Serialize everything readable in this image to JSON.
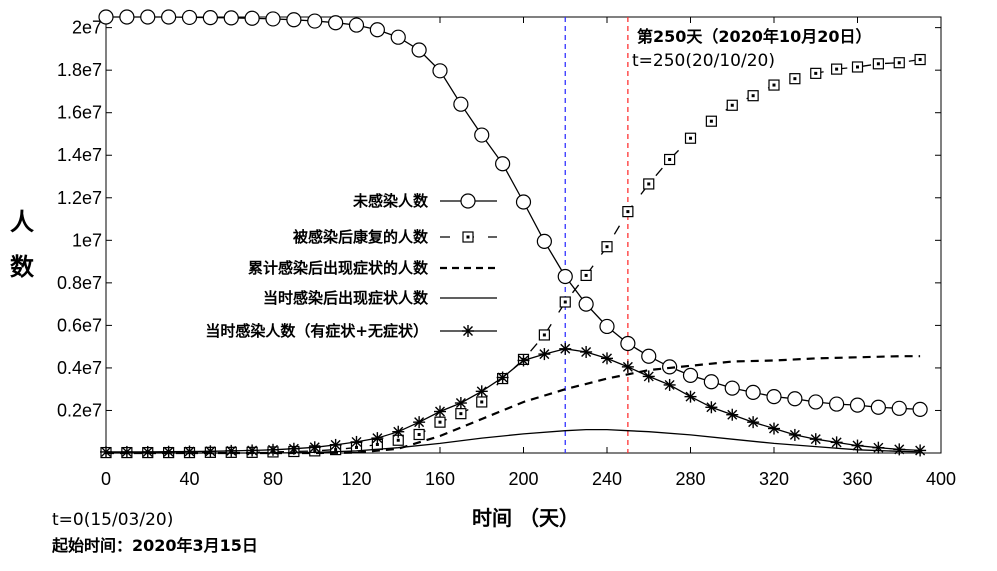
{
  "chart_data": {
    "type": "line",
    "title": "",
    "xlabel": "时间 （天）",
    "ylabel_chars": [
      "人",
      "数"
    ],
    "xlim": [
      0,
      400
    ],
    "ylim": [
      0,
      20500000
    ],
    "x_ticks": [
      0,
      40,
      80,
      120,
      160,
      200,
      240,
      280,
      320,
      360,
      400
    ],
    "x_tick_labels": [
      "0",
      "40",
      "80",
      "120",
      "160",
      "200",
      "240",
      "280",
      "320",
      "360",
      "400"
    ],
    "y_ticks": [
      2000000,
      4000000,
      6000000,
      8000000,
      10000000,
      12000000,
      14000000,
      16000000,
      18000000,
      20000000
    ],
    "y_tick_labels": [
      "0.2e7",
      "0.4e7",
      "0.6e7",
      "0.8e7",
      "1e7",
      "1.2e7",
      "1.4e7",
      "1.6e7",
      "1.8e7",
      "2e7"
    ],
    "vlines": [
      {
        "x": 220,
        "color": "#3333ff",
        "name": "peak-infection-line"
      },
      {
        "x": 250,
        "color": "#ff3333",
        "name": "day-250-line"
      }
    ],
    "annotations": {
      "day250_bold": "第250天（2020年10月20日）",
      "day250_plain": "t=250(20/10/20)",
      "start_t": "t=0(15/03/20)",
      "start_date": "起始时间：2020年3月15日"
    },
    "series": [
      {
        "name": "未感染人数",
        "style": "solid-circle",
        "x": [
          0,
          10,
          20,
          30,
          40,
          50,
          60,
          70,
          80,
          90,
          100,
          110,
          120,
          130,
          140,
          150,
          160,
          170,
          180,
          190,
          200,
          210,
          220,
          230,
          240,
          250,
          260,
          270,
          280,
          290,
          300,
          310,
          320,
          330,
          340,
          350,
          360,
          370,
          380,
          390
        ],
        "values": [
          20500000,
          20500000,
          20500000,
          20500000,
          20480000,
          20470000,
          20460000,
          20440000,
          20410000,
          20370000,
          20310000,
          20230000,
          20120000,
          19900000,
          19550000,
          18950000,
          17970000,
          16400000,
          14950000,
          13600000,
          11800000,
          9950000,
          8300000,
          7000000,
          5950000,
          5150000,
          4550000,
          4050000,
          3650000,
          3350000,
          3050000,
          2850000,
          2650000,
          2550000,
          2400000,
          2300000,
          2250000,
          2150000,
          2100000,
          2050000
        ]
      },
      {
        "name": "被感染后康复的人数",
        "style": "dashed-square",
        "x": [
          0,
          10,
          20,
          30,
          40,
          50,
          60,
          70,
          80,
          90,
          100,
          110,
          120,
          130,
          140,
          150,
          160,
          170,
          180,
          190,
          200,
          210,
          220,
          230,
          240,
          250,
          260,
          270,
          280,
          290,
          300,
          310,
          320,
          330,
          340,
          350,
          360,
          370,
          380,
          390
        ],
        "values": [
          20000,
          20000,
          20000,
          20000,
          20000,
          30000,
          30000,
          30000,
          50000,
          70000,
          100000,
          160000,
          260000,
          400000,
          600000,
          870000,
          1450000,
          1850000,
          2400000,
          3500000,
          4400000,
          5550000,
          7100000,
          8350000,
          9700000,
          11350000,
          12650000,
          13800000,
          14800000,
          15600000,
          16350000,
          16800000,
          17300000,
          17600000,
          17850000,
          18050000,
          18150000,
          18300000,
          18350000,
          18500000
        ]
      },
      {
        "name": "累计感染后出现症状的人数",
        "style": "dashed",
        "x": [
          0,
          20,
          40,
          60,
          80,
          100,
          120,
          140,
          160,
          180,
          200,
          220,
          240,
          260,
          280,
          300,
          320,
          340,
          360,
          380,
          390
        ],
        "values": [
          0,
          0,
          0,
          0,
          0,
          0,
          20000,
          200000,
          800000,
          1600000,
          2400000,
          3000000,
          3500000,
          3900000,
          4100000,
          4300000,
          4350000,
          4450000,
          4500000,
          4550000,
          4550000
        ]
      },
      {
        "name": "当时感染后出现症状人数",
        "style": "solid",
        "x": [
          0,
          20,
          40,
          60,
          80,
          100,
          120,
          140,
          160,
          180,
          200,
          220,
          230,
          240,
          250,
          260,
          280,
          300,
          320,
          340,
          360,
          380,
          390
        ],
        "values": [
          0,
          0,
          0,
          0,
          0,
          30000,
          100000,
          250000,
          450000,
          700000,
          900000,
          1050000,
          1100000,
          1100000,
          1050000,
          1000000,
          850000,
          650000,
          450000,
          300000,
          150000,
          80000,
          50000
        ]
      },
      {
        "name": "当时感染人数（有症状+无症状）",
        "style": "solid-star",
        "x": [
          0,
          10,
          20,
          30,
          40,
          50,
          60,
          70,
          80,
          90,
          100,
          110,
          120,
          130,
          140,
          150,
          160,
          170,
          180,
          190,
          200,
          210,
          220,
          230,
          240,
          250,
          260,
          270,
          280,
          290,
          300,
          310,
          320,
          330,
          340,
          350,
          360,
          370,
          380,
          390
        ],
        "values": [
          50000,
          50000,
          50000,
          60000,
          70000,
          80000,
          100000,
          120000,
          150000,
          200000,
          270000,
          380000,
          520000,
          700000,
          1000000,
          1450000,
          1950000,
          2350000,
          2900000,
          3550000,
          4350000,
          4650000,
          4900000,
          4750000,
          4450000,
          4050000,
          3600000,
          3200000,
          2650000,
          2150000,
          1800000,
          1450000,
          1150000,
          850000,
          650000,
          500000,
          350000,
          250000,
          170000,
          120000
        ]
      }
    ]
  }
}
